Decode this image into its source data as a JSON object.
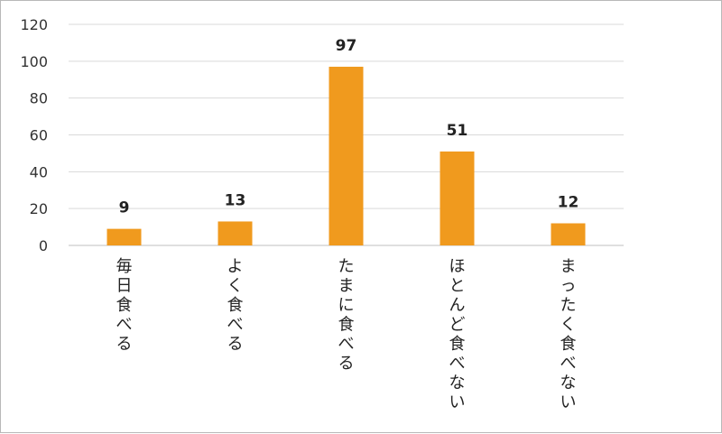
{
  "chart_data": {
    "type": "bar",
    "categories": [
      "毎日食べる",
      "よく食べる",
      "たまに食べる",
      "ほとんど食べない",
      "まったく食べない"
    ],
    "values": [
      9,
      13,
      97,
      51,
      12
    ],
    "data_labels": [
      "9",
      "13",
      "97",
      "51",
      "12"
    ],
    "yticks": [
      "0",
      "20",
      "40",
      "60",
      "80",
      "100",
      "120"
    ],
    "ylim": [
      0,
      120
    ],
    "ytick_step": 20,
    "grid": true,
    "legend": "none",
    "bar_color": "#f09a1e",
    "grid_color": "#d9d9d9",
    "axis_color": "#bfbfbf"
  }
}
